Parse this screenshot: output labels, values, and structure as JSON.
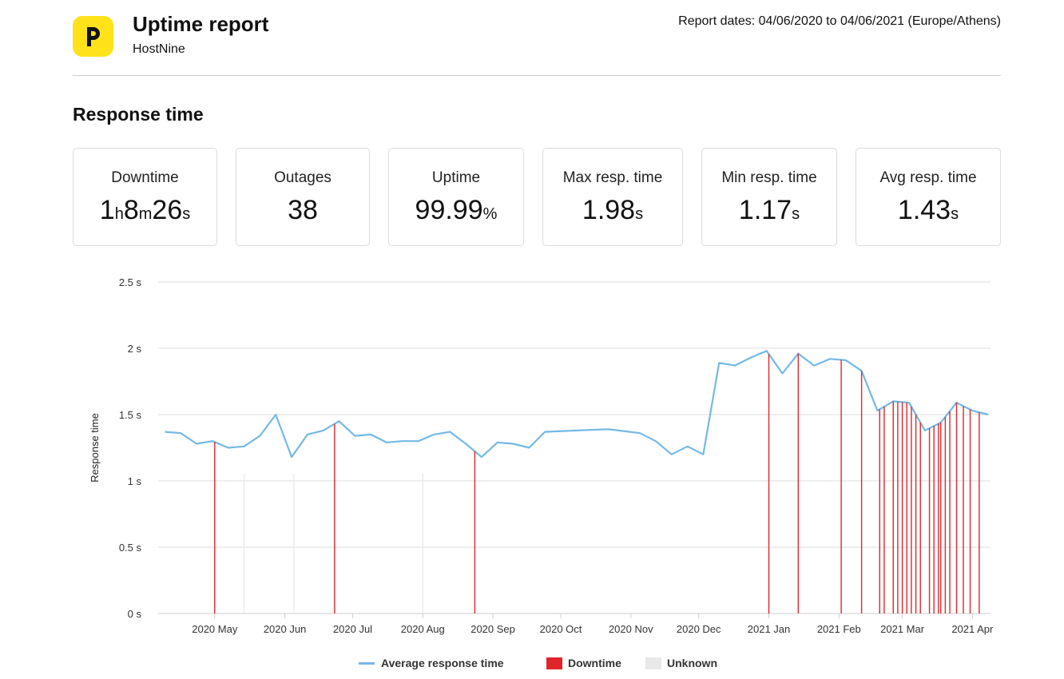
{
  "header": {
    "title": "Uptime report",
    "subtitle": "HostNine",
    "report_dates": "Report dates: 04/06/2020 to 04/06/2021 (Europe/Athens)"
  },
  "section_title": "Response time",
  "stats": [
    {
      "label": "Downtime",
      "parts": [
        [
          "1",
          ""
        ],
        [
          "h",
          "u"
        ],
        [
          "8",
          ""
        ],
        [
          "m",
          "u"
        ],
        [
          "26",
          ""
        ],
        [
          "s",
          "u"
        ]
      ]
    },
    {
      "label": "Outages",
      "parts": [
        [
          "38",
          ""
        ]
      ]
    },
    {
      "label": "Uptime",
      "parts": [
        [
          "99.99",
          ""
        ],
        [
          "%",
          "u"
        ]
      ]
    },
    {
      "label": "Max resp. time",
      "parts": [
        [
          "1.98",
          ""
        ],
        [
          "s",
          "u"
        ]
      ]
    },
    {
      "label": "Min resp. time",
      "parts": [
        [
          "1.17",
          ""
        ],
        [
          "s",
          "u"
        ]
      ]
    },
    {
      "label": "Avg resp. time",
      "parts": [
        [
          "1.43",
          ""
        ],
        [
          "s",
          "u"
        ]
      ]
    }
  ],
  "colors": {
    "line": "#74b9e6",
    "downtime": "#e0262b",
    "unknown": "#e8e8e8",
    "logo": "#ffe21a",
    "grid": "#dddddd"
  },
  "chart_data": {
    "type": "line",
    "ylabel": "Response time",
    "ylim": [
      0,
      2.5
    ],
    "yticks": [
      "0 s",
      "0.5 s",
      "1 s",
      "1.5 s",
      "2 s",
      "2.5 s"
    ],
    "xlim": [
      "2020-04-06",
      "2021-04-09"
    ],
    "xticks": [
      {
        "date": "2020-05-01",
        "label": "2020 May"
      },
      {
        "date": "2020-06-01",
        "label": "2020 Jun"
      },
      {
        "date": "2020-07-01",
        "label": "2020 Jul"
      },
      {
        "date": "2020-08-01",
        "label": "2020 Aug"
      },
      {
        "date": "2020-09-01",
        "label": "2020 Sep"
      },
      {
        "date": "2020-10-01",
        "label": "2020 Oct"
      },
      {
        "date": "2020-11-01",
        "label": "2020 Nov"
      },
      {
        "date": "2020-12-01",
        "label": "2020 Dec"
      },
      {
        "date": "2021-01-01",
        "label": "2021 Jan"
      },
      {
        "date": "2021-02-01",
        "label": "2021 Feb"
      },
      {
        "date": "2021-03-01",
        "label": "2021 Mar"
      },
      {
        "date": "2021-04-01",
        "label": "2021 Apr"
      }
    ],
    "series": [
      {
        "name": "Average response time",
        "points": [
          [
            "2020-04-09",
            1.37
          ],
          [
            "2020-04-16",
            1.36
          ],
          [
            "2020-04-23",
            1.28
          ],
          [
            "2020-04-30",
            1.3
          ],
          [
            "2020-05-07",
            1.25
          ],
          [
            "2020-05-14",
            1.26
          ],
          [
            "2020-05-21",
            1.34
          ],
          [
            "2020-05-28",
            1.5
          ],
          [
            "2020-06-04",
            1.18
          ],
          [
            "2020-06-11",
            1.35
          ],
          [
            "2020-06-18",
            1.38
          ],
          [
            "2020-06-25",
            1.45
          ],
          [
            "2020-07-02",
            1.34
          ],
          [
            "2020-07-09",
            1.35
          ],
          [
            "2020-07-16",
            1.29
          ],
          [
            "2020-07-23",
            1.3
          ],
          [
            "2020-07-30",
            1.3
          ],
          [
            "2020-08-06",
            1.35
          ],
          [
            "2020-08-13",
            1.37
          ],
          [
            "2020-08-20",
            1.28
          ],
          [
            "2020-08-27",
            1.18
          ],
          [
            "2020-09-03",
            1.29
          ],
          [
            "2020-09-10",
            1.28
          ],
          [
            "2020-09-17",
            1.25
          ],
          [
            "2020-09-24",
            1.37
          ],
          [
            "2020-10-08",
            1.38
          ],
          [
            "2020-10-22",
            1.39
          ],
          [
            "2020-11-05",
            1.36
          ],
          [
            "2020-11-12",
            1.3
          ],
          [
            "2020-11-19",
            1.2
          ],
          [
            "2020-11-26",
            1.26
          ],
          [
            "2020-12-03",
            1.2
          ],
          [
            "2020-12-10",
            1.89
          ],
          [
            "2020-12-17",
            1.87
          ],
          [
            "2020-12-24",
            1.93
          ],
          [
            "2020-12-31",
            1.98
          ],
          [
            "2021-01-07",
            1.81
          ],
          [
            "2021-01-14",
            1.96
          ],
          [
            "2021-01-21",
            1.87
          ],
          [
            "2021-01-28",
            1.92
          ],
          [
            "2021-02-04",
            1.91
          ],
          [
            "2021-02-11",
            1.83
          ],
          [
            "2021-02-18",
            1.53
          ],
          [
            "2021-02-25",
            1.6
          ],
          [
            "2021-03-04",
            1.59
          ],
          [
            "2021-03-11",
            1.38
          ],
          [
            "2021-03-18",
            1.44
          ],
          [
            "2021-03-25",
            1.59
          ],
          [
            "2021-04-01",
            1.53
          ],
          [
            "2021-04-08",
            1.5
          ]
        ]
      }
    ],
    "downtime_dates": [
      "2020-05-01",
      "2020-06-23",
      "2020-08-24",
      "2021-01-01",
      "2021-01-14",
      "2021-02-02",
      "2021-02-11",
      "2021-02-19",
      "2021-02-21",
      "2021-02-25",
      "2021-02-27",
      "2021-03-01",
      "2021-03-03",
      "2021-03-05",
      "2021-03-07",
      "2021-03-09",
      "2021-03-13",
      "2021-03-15",
      "2021-03-17",
      "2021-03-18",
      "2021-03-20",
      "2021-03-22",
      "2021-03-25",
      "2021-03-28",
      "2021-03-31",
      "2021-04-04"
    ],
    "unknown_dates": [
      "2020-05-14",
      "2020-06-05",
      "2020-08-01"
    ],
    "legend": [
      {
        "label": "Average response time",
        "kind": "line"
      },
      {
        "label": "Downtime",
        "kind": "downtime"
      },
      {
        "label": "Unknown",
        "kind": "unknown"
      }
    ],
    "legend_position": "bottom-center",
    "grid": true
  }
}
